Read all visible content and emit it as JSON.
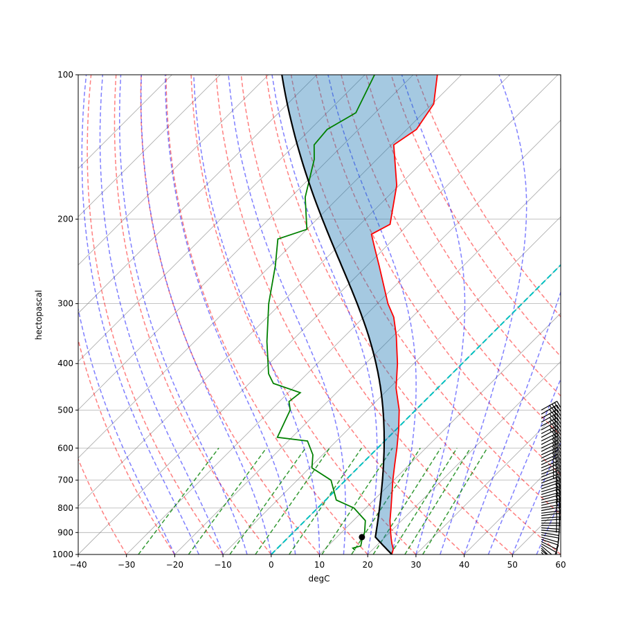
{
  "chart_data": {
    "type": "line",
    "title": "",
    "xlabel": "degC",
    "ylabel": "hectopascal",
    "xlim": [
      -40,
      60
    ],
    "ylim": [
      1000,
      100
    ],
    "yscale": "log",
    "grid": true,
    "x_ticks": [
      -40,
      -30,
      -20,
      -10,
      0,
      10,
      20,
      30,
      40,
      50,
      60
    ],
    "x_tick_labels": [
      "−40",
      "−30",
      "−20",
      "−10",
      "0",
      "10",
      "20",
      "30",
      "40",
      "50",
      "60"
    ],
    "y_ticks": [
      1000,
      900,
      800,
      700,
      600,
      500,
      400,
      300,
      200,
      100
    ],
    "y_tick_labels": [
      "1000",
      "900",
      "800",
      "700",
      "600",
      "500",
      "400",
      "300",
      "200",
      "100"
    ],
    "colors": {
      "temperature": "#ff0000",
      "dewpoint": "#008000",
      "parcel": "#000000",
      "cape_fill": "#ff0000",
      "cin_fill": "#1f77b4",
      "dry_adiabats": "#ff0000",
      "moist_adiabats": "#0000ff",
      "mixing_ratio": "#008000",
      "zero_isotherm": "#00bfbf",
      "isotherms": "#808080",
      "wind_barbs": "#000000"
    },
    "series": [
      {
        "kind": "temperature",
        "points": [
          {
            "p": 1000,
            "t": 25.0
          },
          {
            "p": 975,
            "t": 24.2
          },
          {
            "p": 950,
            "t": 22.8
          },
          {
            "p": 925,
            "t": 21.5
          },
          {
            "p": 900,
            "t": 20.2
          },
          {
            "p": 850,
            "t": 17.6
          },
          {
            "p": 800,
            "t": 15.2
          },
          {
            "p": 750,
            "t": 12.6
          },
          {
            "p": 700,
            "t": 9.8
          },
          {
            "p": 650,
            "t": 7.0
          },
          {
            "p": 600,
            "t": 4.0
          },
          {
            "p": 550,
            "t": 0.6
          },
          {
            "p": 500,
            "t": -3.4
          },
          {
            "p": 450,
            "t": -8.6
          },
          {
            "p": 400,
            "t": -13.4
          },
          {
            "p": 350,
            "t": -19.4
          },
          {
            "p": 320,
            "t": -23.8
          },
          {
            "p": 300,
            "t": -27.8
          },
          {
            "p": 250,
            "t": -37.5
          },
          {
            "p": 230,
            "t": -42.0
          },
          {
            "p": 215,
            "t": -45.6
          },
          {
            "p": 205,
            "t": -43.8
          },
          {
            "p": 170,
            "t": -50.5
          },
          {
            "p": 140,
            "t": -59.5
          },
          {
            "p": 130,
            "t": -58.0
          },
          {
            "p": 115,
            "t": -59.7
          },
          {
            "p": 100,
            "t": -65.0
          }
        ]
      },
      {
        "kind": "dewpoint",
        "points": [
          {
            "p": 980,
            "t": 16.5
          },
          {
            "p": 970,
            "t": 15.6
          },
          {
            "p": 960,
            "t": 16.8
          },
          {
            "p": 925,
            "t": 15.5
          },
          {
            "p": 900,
            "t": 14.8
          },
          {
            "p": 850,
            "t": 12.5
          },
          {
            "p": 800,
            "t": 7.5
          },
          {
            "p": 770,
            "t": 2.2
          },
          {
            "p": 700,
            "t": -3.0
          },
          {
            "p": 660,
            "t": -9.5
          },
          {
            "p": 620,
            "t": -12.0
          },
          {
            "p": 580,
            "t": -16.0
          },
          {
            "p": 570,
            "t": -23.0
          },
          {
            "p": 500,
            "t": -26.0
          },
          {
            "p": 480,
            "t": -28.0
          },
          {
            "p": 460,
            "t": -27.5
          },
          {
            "p": 440,
            "t": -35.0
          },
          {
            "p": 420,
            "t": -38.0
          },
          {
            "p": 360,
            "t": -45.0
          },
          {
            "p": 300,
            "t": -52.5
          },
          {
            "p": 250,
            "t": -59.0
          },
          {
            "p": 220,
            "t": -64.0
          },
          {
            "p": 210,
            "t": -60.0
          },
          {
            "p": 180,
            "t": -67.0
          },
          {
            "p": 150,
            "t": -73.0
          },
          {
            "p": 140,
            "t": -76.0
          },
          {
            "p": 130,
            "t": -76.5
          },
          {
            "p": 120,
            "t": -74.0
          },
          {
            "p": 100,
            "t": -78.0
          }
        ]
      }
    ],
    "parcel_surface": {
      "p": 1000,
      "t": 25.0,
      "td": 16.5
    },
    "lcl": {
      "p": 920,
      "t": 15.2
    },
    "wind_barbs_p": [
      1000,
      990,
      980,
      970,
      960,
      950,
      940,
      930,
      920,
      910,
      900,
      890,
      880,
      870,
      860,
      850,
      840,
      830,
      820,
      810,
      800,
      790,
      780,
      770,
      760,
      750,
      740,
      730,
      720,
      710,
      700,
      690,
      680,
      670,
      660,
      650,
      640,
      630,
      620,
      610,
      600,
      590,
      580,
      570,
      560,
      550,
      540,
      530,
      520,
      510,
      500
    ],
    "wind_barbs": [
      {
        "u": -3,
        "v": 4
      },
      {
        "u": -4,
        "v": 4
      },
      {
        "u": -5,
        "v": 4
      },
      {
        "u": -5,
        "v": 5
      },
      {
        "u": -6,
        "v": 5
      },
      {
        "u": -7,
        "v": 4
      },
      {
        "u": -8,
        "v": 4
      },
      {
        "u": -9,
        "v": 3
      },
      {
        "u": -10,
        "v": 3
      },
      {
        "u": -11,
        "v": 2
      },
      {
        "u": -12,
        "v": 2
      },
      {
        "u": -12,
        "v": 1
      },
      {
        "u": -13,
        "v": 1
      },
      {
        "u": -13,
        "v": 0
      },
      {
        "u": -14,
        "v": 0
      },
      {
        "u": -14,
        "v": -1
      },
      {
        "u": -15,
        "v": -1
      },
      {
        "u": -15,
        "v": -2
      },
      {
        "u": -16,
        "v": -2
      },
      {
        "u": -16,
        "v": -3
      },
      {
        "u": -17,
        "v": -3
      },
      {
        "u": -17,
        "v": -4
      },
      {
        "u": -18,
        "v": -4
      },
      {
        "u": -18,
        "v": -5
      },
      {
        "u": -19,
        "v": -5
      },
      {
        "u": -19,
        "v": -6
      },
      {
        "u": -20,
        "v": -6
      },
      {
        "u": -20,
        "v": -7
      },
      {
        "u": -21,
        "v": -7
      },
      {
        "u": -21,
        "v": -8
      },
      {
        "u": -22,
        "v": -8
      },
      {
        "u": -22,
        "v": -9
      },
      {
        "u": -23,
        "v": -9
      },
      {
        "u": -23,
        "v": -10
      },
      {
        "u": -24,
        "v": -10
      },
      {
        "u": -24,
        "v": -11
      },
      {
        "u": -25,
        "v": -11
      },
      {
        "u": -25,
        "v": -12
      },
      {
        "u": -26,
        "v": -12
      },
      {
        "u": -26,
        "v": -13
      },
      {
        "u": -27,
        "v": -13
      },
      {
        "u": -27,
        "v": -14
      },
      {
        "u": -28,
        "v": -14
      },
      {
        "u": -28,
        "v": -15
      },
      {
        "u": -29,
        "v": -15
      },
      {
        "u": -29,
        "v": -16
      },
      {
        "u": -30,
        "v": -16
      },
      {
        "u": -30,
        "v": -17
      },
      {
        "u": -31,
        "v": -17
      },
      {
        "u": -31,
        "v": -18
      },
      {
        "u": -32,
        "v": -18
      }
    ],
    "dry_adiabat_thetas_c": [
      -30,
      -20,
      -10,
      0,
      10,
      20,
      30,
      40,
      50,
      60,
      70,
      80,
      90,
      100,
      110,
      120
    ],
    "moist_adiabat_start_t_c": [
      -20,
      -15,
      -10,
      -5,
      0,
      5,
      10,
      15,
      20,
      25,
      30,
      35,
      40,
      45,
      50,
      55
    ],
    "mixing_ratios_gkg": [
      0.4,
      1,
      2,
      3,
      5,
      8,
      12,
      16,
      20,
      24,
      30
    ],
    "mixing_ratio_top_p": 600,
    "zero_isotherm_c": 0
  }
}
